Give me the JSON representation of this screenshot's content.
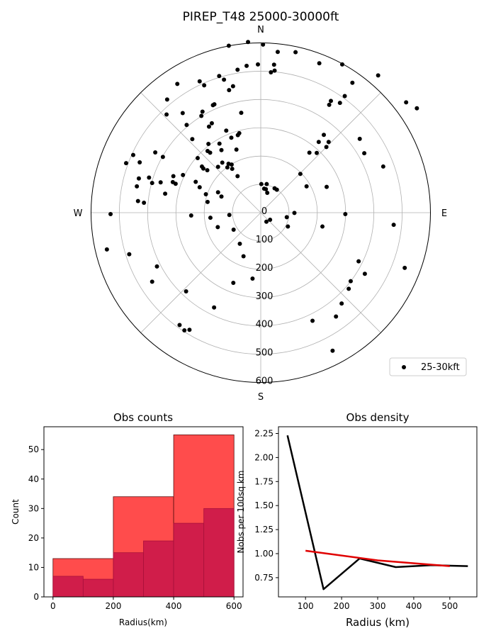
{
  "figure": {
    "title": "PIREP_T48 25000-30000ft"
  },
  "chart_data": [
    {
      "type": "scatter",
      "subtype": "polar",
      "title": "PIREP_T48 25000-30000ft",
      "compass_labels": [
        "N",
        "E",
        "S",
        "W"
      ],
      "r_ticks": [
        0,
        100,
        200,
        300,
        400,
        500,
        600
      ],
      "rlim": [
        0,
        600
      ],
      "grid": true,
      "legend": {
        "position": "bottom-right",
        "entries": [
          "25-30kft"
        ]
      },
      "series": [
        {
          "name": "25-30kft",
          "color": "#000000",
          "points_east_north_km": [
            [
              -113,
              590
            ],
            [
              -45,
              603
            ],
            [
              8,
              594
            ],
            [
              60,
              568
            ],
            [
              123,
              567
            ],
            [
              -50,
              519
            ],
            [
              -10,
              524
            ],
            [
              47,
              523
            ],
            [
              49,
              502
            ],
            [
              36,
              496
            ],
            [
              -82,
              505
            ],
            [
              -147,
              483
            ],
            [
              -130,
              470
            ],
            [
              -98,
              447
            ],
            [
              -112,
              433
            ],
            [
              -295,
              455
            ],
            [
              -216,
              464
            ],
            [
              -200,
              450
            ],
            [
              -164,
              383
            ],
            [
              -169,
              380
            ],
            [
              -206,
              357
            ],
            [
              -210,
              342
            ],
            [
              -331,
              400
            ],
            [
              -333,
              347
            ],
            [
              -276,
              352
            ],
            [
              -262,
              310
            ],
            [
              -173,
              316
            ],
            [
              -183,
              304
            ],
            [
              -122,
              290
            ],
            [
              -104,
              265
            ],
            [
              -69,
              353
            ],
            [
              -76,
              281
            ],
            [
              -81,
              274
            ],
            [
              -146,
              244
            ],
            [
              -188,
              218
            ],
            [
              -242,
              260
            ],
            [
              -346,
              197
            ],
            [
              -373,
              213
            ],
            [
              -428,
              178
            ],
            [
              -451,
              204
            ],
            [
              -431,
              121
            ],
            [
              -438,
              93
            ],
            [
              -395,
              124
            ],
            [
              -413,
              35
            ],
            [
              -354,
              107
            ],
            [
              -338,
              67
            ],
            [
              -384,
              105
            ],
            [
              -301,
              102
            ],
            [
              -311,
              108
            ],
            [
              -309,
              129
            ],
            [
              -275,
              133
            ],
            [
              -230,
              109
            ],
            [
              -223,
              193
            ],
            [
              -151,
              162
            ],
            [
              -203,
              156
            ],
            [
              -216,
              90
            ],
            [
              -208,
              163
            ],
            [
              -189,
              150
            ],
            [
              -179,
              212
            ],
            [
              -118,
              160
            ],
            [
              -103,
              170
            ],
            [
              -101,
              155
            ],
            [
              -185,
              243
            ],
            [
              -86,
              223
            ],
            [
              -114,
              173
            ],
            [
              -139,
              221
            ],
            [
              -136,
              177
            ],
            [
              -194,
              65
            ],
            [
              -151,
              72
            ],
            [
              -139,
              57
            ],
            [
              -188,
              38
            ],
            [
              -82,
              129
            ],
            [
              -111,
              -8
            ],
            [
              -96,
              -60
            ],
            [
              -74,
              -110
            ],
            [
              -61,
              -154
            ],
            [
              -178,
              -18
            ],
            [
              -152,
              -51
            ],
            [
              -246,
              -10
            ],
            [
              -434,
              41
            ],
            [
              -476,
              175
            ],
            [
              -531,
              -5
            ],
            [
              -544,
              -130
            ],
            [
              -465,
              -147
            ],
            [
              -367,
              -190
            ],
            [
              -384,
              -244
            ],
            [
              -264,
              -278
            ],
            [
              -165,
              -335
            ],
            [
              -287,
              -397
            ],
            [
              -270,
              -416
            ],
            [
              -252,
              -414
            ],
            [
              -29,
              -233
            ],
            [
              -97,
              -248
            ],
            [
              2,
              101
            ],
            [
              18,
              83
            ],
            [
              20,
              -32
            ],
            [
              33,
              -25
            ],
            [
              92,
              -16
            ],
            [
              96,
              -49
            ],
            [
              119,
              -1
            ],
            [
              172,
              212
            ],
            [
              205,
              250
            ],
            [
              223,
              275
            ],
            [
              242,
              381
            ],
            [
              248,
              395
            ],
            [
              280,
              388
            ],
            [
              297,
              412
            ],
            [
              288,
              524
            ],
            [
              207,
              528
            ],
            [
              324,
              459
            ],
            [
              415,
              485
            ],
            [
              514,
              390
            ],
            [
              552,
              369
            ],
            [
              350,
              261
            ],
            [
              433,
              163
            ],
            [
              366,
              210
            ],
            [
              232,
              232
            ],
            [
              240,
              250
            ],
            [
              198,
              211
            ],
            [
              140,
              137
            ],
            [
              218,
              -49
            ],
            [
              162,
              93
            ],
            [
              233,
              91
            ],
            [
              299,
              -5
            ],
            [
              470,
              -43
            ],
            [
              509,
              -195
            ],
            [
              346,
              -172
            ],
            [
              368,
              -216
            ],
            [
              318,
              -242
            ],
            [
              311,
              -269
            ],
            [
              286,
              -321
            ],
            [
              266,
              -367
            ],
            [
              254,
              -488
            ],
            [
              183,
              -382
            ],
            [
              12,
              85
            ],
            [
              21,
              101
            ],
            [
              23,
              70
            ],
            [
              49,
              86
            ],
            [
              57,
              81
            ]
          ]
        }
      ]
    },
    {
      "type": "bar",
      "subtype": "histogram",
      "title": "Obs counts",
      "xlabel": "Radius(km)",
      "ylabel": "Count",
      "xlim": [
        -30,
        630
      ],
      "ylim": [
        0,
        57.75
      ],
      "x_ticks": [
        0,
        200,
        400,
        600
      ],
      "y_ticks": [
        0,
        10,
        20,
        30,
        40,
        50
      ],
      "series": [
        {
          "color": "#ff0000",
          "alpha": 0.7,
          "bin_edges": [
            0,
            200,
            400,
            600
          ],
          "values": [
            13,
            34,
            55
          ]
        },
        {
          "color": "#c8154a",
          "alpha": 0.85,
          "bin_edges": [
            0,
            100,
            200,
            300,
            400,
            500,
            600
          ],
          "values": [
            7,
            6,
            15,
            19,
            25,
            30
          ]
        }
      ]
    },
    {
      "type": "line",
      "title": "Obs density",
      "xlabel": "Radius (km)",
      "ylabel": "Nobs per 100sq km",
      "xlim": [
        25,
        575
      ],
      "ylim": [
        0.55,
        2.32
      ],
      "x_ticks": [
        100,
        200,
        300,
        400,
        500
      ],
      "y_ticks": [
        0.75,
        1.0,
        1.25,
        1.5,
        1.75,
        2.0,
        2.25
      ],
      "series": [
        {
          "color": "#000000",
          "x": [
            50,
            150,
            250,
            350,
            450,
            550
          ],
          "y": [
            2.23,
            0.63,
            0.95,
            0.86,
            0.88,
            0.87
          ]
        },
        {
          "color": "#e00000",
          "x": [
            100,
            300,
            500
          ],
          "y": [
            1.03,
            0.93,
            0.87
          ]
        }
      ]
    }
  ]
}
